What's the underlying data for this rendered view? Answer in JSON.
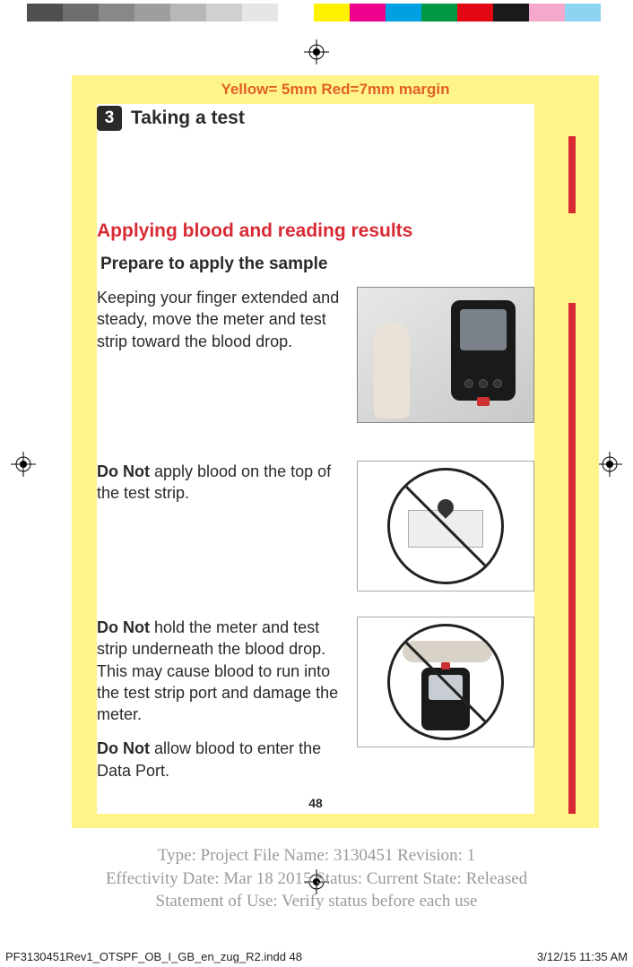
{
  "color_bar": [
    {
      "color": "#4f4f4f",
      "w": 40
    },
    {
      "color": "#6e6e6e",
      "w": 40
    },
    {
      "color": "#888888",
      "w": 40
    },
    {
      "color": "#9e9e9e",
      "w": 40
    },
    {
      "color": "#b8b8b8",
      "w": 40
    },
    {
      "color": "#d0d0d0",
      "w": 40
    },
    {
      "color": "#e6e6e6",
      "w": 40
    },
    {
      "color": "#ffffff",
      "w": 40
    },
    {
      "color": "#fff200",
      "w": 40
    },
    {
      "color": "#ec008c",
      "w": 40
    },
    {
      "color": "#00a0e3",
      "w": 40
    },
    {
      "color": "#009845",
      "w": 40
    },
    {
      "color": "#e30613",
      "w": 40
    },
    {
      "color": "#1a1a1a",
      "w": 40
    },
    {
      "color": "#f5a8cc",
      "w": 40
    },
    {
      "color": "#8ed3f0",
      "w": 40
    }
  ],
  "margin_note": "Yellow= 5mm  Red=7mm margin",
  "step_number": "3",
  "section_title": "Taking a test",
  "heading": "Applying blood and reading results",
  "subheading": "Prepare to apply the sample",
  "para1": "Keeping your finger extended and steady, move the meter and test strip toward the blood drop.",
  "para2_bold": "Do Not",
  "para2_rest": " apply blood on the top of the test strip.",
  "para3_bold": "Do Not",
  "para3_rest": " hold the meter and test strip underneath the blood drop. This may cause blood to run into the test strip port and damage the meter.",
  "para4_bold": "Do Not",
  "para4_rest": " allow blood to enter the Data Port.",
  "page_number": "48",
  "meta_line1": "Type: Project File  Name: 3130451  Revision: 1",
  "meta_line2": "Effectivity Date: Mar 18 2015     Status: Current     State: Released",
  "meta_line3": "Statement of Use: Verify status before each use",
  "footer_left": "PF3130451Rev1_OTSPF_OB_I_GB_en_zug_R2.indd   48",
  "footer_right": "3/12/15   11:35 AM",
  "colors": {
    "yellow_box": "#fff489",
    "red_accent": "#d82a34",
    "orange_text": "#e06028",
    "body_text": "#2a2a2a",
    "meta_gray": "#9a9a9a"
  }
}
